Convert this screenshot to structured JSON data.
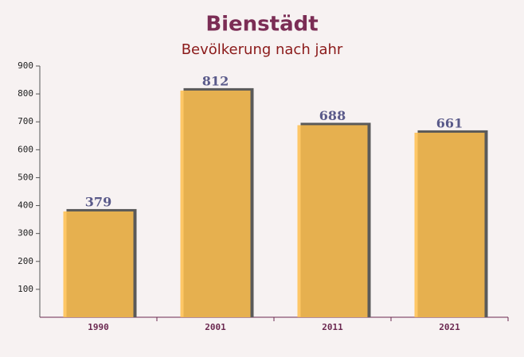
{
  "chart_data": {
    "type": "bar",
    "title": "Bienstädt",
    "subtitle": "Bevölkerung nach jahr",
    "categories": [
      "1990",
      "2001",
      "2011",
      "2021"
    ],
    "values": [
      379,
      812,
      688,
      661
    ],
    "color": "#ffc04d",
    "ylim": [
      0,
      900
    ],
    "yticks": [
      100,
      200,
      300,
      400,
      500,
      600,
      700,
      800,
      900
    ]
  }
}
